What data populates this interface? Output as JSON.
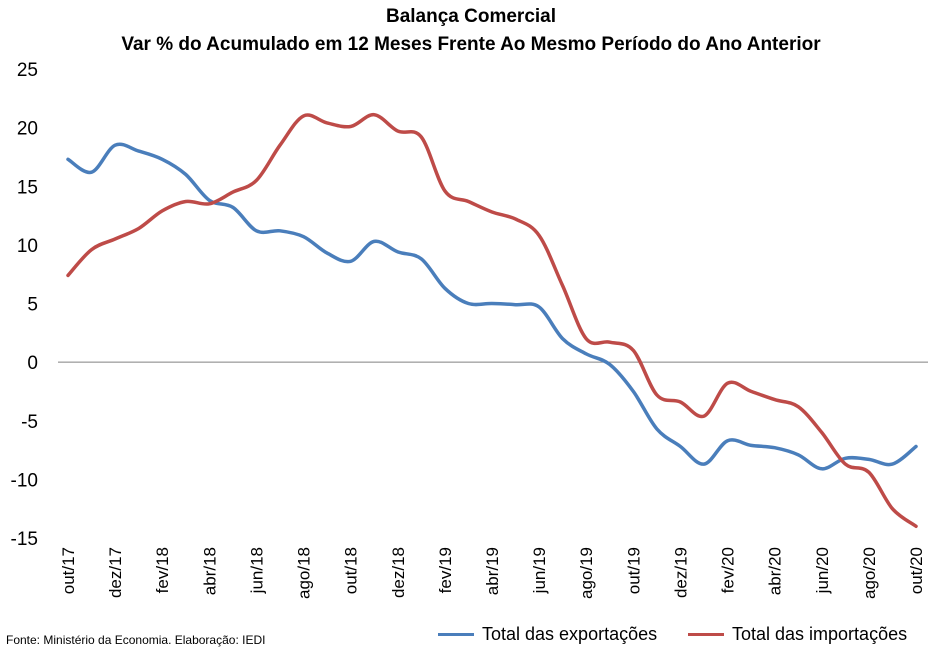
{
  "chart_data": {
    "type": "line",
    "title": "Balança Comercial",
    "subtitle": "Var % do Acumulado em 12 Meses Frente Ao Mesmo Período do Ano Anterior",
    "ylim": [
      -15,
      25
    ],
    "yticks": [
      25,
      20,
      15,
      10,
      5,
      0,
      -5,
      -10,
      -15
    ],
    "grid": false,
    "legend_position": "bottom",
    "x": [
      "out/17",
      "nov/17",
      "dez/17",
      "jan/18",
      "fev/18",
      "mar/18",
      "abr/18",
      "mai/18",
      "jun/18",
      "jul/18",
      "ago/18",
      "set/18",
      "out/18",
      "nov/18",
      "dez/18",
      "jan/19",
      "fev/19",
      "mar/19",
      "abr/19",
      "mai/19",
      "jun/19",
      "jul/19",
      "ago/19",
      "set/19",
      "out/19",
      "nov/19",
      "dez/19",
      "jan/20",
      "fev/20",
      "mar/20",
      "abr/20",
      "mai/20",
      "jun/20",
      "jul/20",
      "ago/20",
      "set/20",
      "out/20"
    ],
    "x_tick_labels": [
      "out/17",
      "dez/17",
      "fev/18",
      "abr/18",
      "jun/18",
      "ago/18",
      "out/18",
      "dez/18",
      "fev/19",
      "abr/19",
      "jun/19",
      "ago/19",
      "out/19",
      "dez/19",
      "fev/20",
      "abr/20",
      "jun/20",
      "ago/20",
      "out/20"
    ],
    "series": [
      {
        "name": "Total das exportações",
        "color": "#4A7EBB",
        "values": [
          17.3,
          16.2,
          18.5,
          18.0,
          17.3,
          16.0,
          13.8,
          13.2,
          11.2,
          11.2,
          10.7,
          9.3,
          8.6,
          10.3,
          9.4,
          8.8,
          6.3,
          5.0,
          5.0,
          4.9,
          4.7,
          2.0,
          0.7,
          -0.2,
          -2.5,
          -5.7,
          -7.2,
          -8.7,
          -6.7,
          -7.1,
          -7.3,
          -7.9,
          -9.1,
          -8.2,
          -8.3,
          -8.7,
          -7.2
        ]
      },
      {
        "name": "Total das importações",
        "color": "#BE4B48",
        "values": [
          7.4,
          9.6,
          10.5,
          11.4,
          12.9,
          13.7,
          13.5,
          14.5,
          15.5,
          18.5,
          21.0,
          20.4,
          20.1,
          21.1,
          19.7,
          19.2,
          14.6,
          13.7,
          12.8,
          12.2,
          10.8,
          6.5,
          2.0,
          1.7,
          1.0,
          -2.8,
          -3.4,
          -4.6,
          -1.8,
          -2.5,
          -3.2,
          -3.8,
          -6.0,
          -8.7,
          -9.4,
          -12.5,
          -14.0
        ]
      }
    ]
  },
  "source_text": "Fonte: Ministério da Economia. Elaboração: IEDI"
}
